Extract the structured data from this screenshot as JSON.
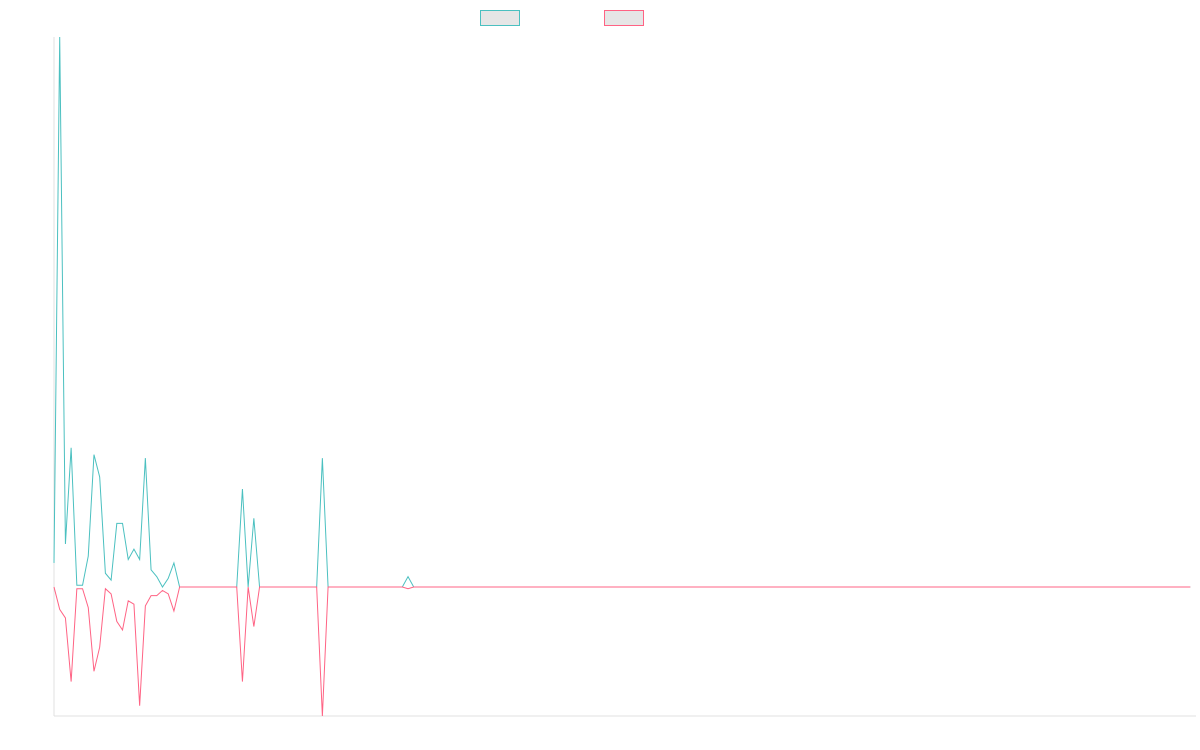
{
  "colors": {
    "series_a": "#4bc0c0",
    "series_b": "#ff6384",
    "swatch_fill": "#e6e6e6",
    "axis": "#e0e0e0"
  },
  "chart_data": {
    "type": "line",
    "title": "",
    "xlabel": "",
    "ylabel": "",
    "grid": false,
    "legend": "top-center",
    "ylim": [
      -75,
      320
    ],
    "x_count": 200,
    "series": [
      {
        "name": "",
        "color": "#4bc0c0",
        "values": [
          14,
          320,
          25,
          81,
          1,
          1,
          18,
          77,
          64,
          8,
          4,
          37,
          37,
          16,
          22,
          16,
          75,
          10,
          6,
          0,
          5,
          14,
          0,
          0,
          0,
          0,
          0,
          0,
          0,
          0,
          0,
          0,
          0,
          57,
          0,
          40,
          0,
          0,
          0,
          0,
          0,
          0,
          0,
          0,
          0,
          0,
          0,
          75,
          0,
          0,
          0,
          0,
          0,
          0,
          0,
          0,
          0,
          0,
          0,
          0,
          0,
          0,
          6,
          0,
          0,
          0,
          0,
          0,
          0,
          0,
          0,
          0,
          0,
          0,
          0,
          0,
          0,
          0,
          0,
          0,
          0,
          0,
          0,
          0,
          0,
          0,
          0,
          0,
          0,
          0,
          0,
          0,
          0,
          0,
          0,
          0,
          0,
          0,
          0,
          0,
          0,
          0,
          0,
          0,
          0,
          0,
          0,
          0,
          0,
          0,
          0,
          0,
          0,
          0,
          0,
          0,
          0,
          0,
          0,
          0,
          0,
          0,
          0,
          0,
          0,
          0,
          0,
          0,
          0,
          0,
          0,
          0,
          0,
          0,
          0,
          0,
          0,
          0,
          0,
          0,
          0,
          0,
          0,
          0,
          0,
          0,
          0,
          0,
          0,
          0,
          0,
          0,
          0,
          0,
          0,
          0,
          0,
          0,
          0,
          0,
          0,
          0,
          0,
          0,
          0,
          0,
          0,
          0,
          0,
          0,
          0,
          0,
          0,
          0,
          0,
          0,
          0,
          0,
          0,
          0,
          0,
          0,
          0,
          0,
          0,
          0,
          0,
          0,
          0,
          0,
          0,
          0,
          0,
          0,
          0,
          0,
          0,
          0,
          0,
          0
        ]
      },
      {
        "name": "",
        "color": "#ff6384",
        "values": [
          0,
          -13,
          -18,
          -55,
          -1,
          -1,
          -12,
          -49,
          -35,
          -1,
          -4,
          -20,
          -25,
          -8,
          -10,
          -69,
          -11,
          -5,
          -5,
          -2,
          -4,
          -14,
          0,
          0,
          0,
          0,
          0,
          0,
          0,
          0,
          0,
          0,
          0,
          -55,
          0,
          -23,
          0,
          0,
          0,
          0,
          0,
          0,
          0,
          0,
          0,
          0,
          0,
          -75,
          0,
          0,
          0,
          0,
          0,
          0,
          0,
          0,
          0,
          0,
          0,
          0,
          0,
          0,
          -1,
          0,
          0,
          0,
          0,
          0,
          0,
          0,
          0,
          0,
          0,
          0,
          0,
          0,
          0,
          0,
          0,
          0,
          0,
          0,
          0,
          0,
          0,
          0,
          0,
          0,
          0,
          0,
          0,
          0,
          0,
          0,
          0,
          0,
          0,
          0,
          0,
          0,
          0,
          0,
          0,
          0,
          0,
          0,
          0,
          0,
          0,
          0,
          0,
          0,
          0,
          0,
          0,
          0,
          0,
          0,
          0,
          0,
          0,
          0,
          0,
          0,
          0,
          0,
          0,
          0,
          0,
          0,
          0,
          0,
          0,
          0,
          0,
          0,
          0,
          0,
          0,
          0,
          0,
          0,
          0,
          0,
          0,
          0,
          0,
          0,
          0,
          0,
          0,
          0,
          0,
          0,
          0,
          0,
          0,
          0,
          0,
          0,
          0,
          0,
          0,
          0,
          0,
          0,
          0,
          0,
          0,
          0,
          0,
          0,
          0,
          0,
          0,
          0,
          0,
          0,
          0,
          0,
          0,
          0,
          0,
          0,
          0,
          0,
          0,
          0,
          0,
          0,
          0,
          0,
          0,
          0,
          0,
          0,
          0,
          0,
          0,
          0
        ]
      }
    ]
  }
}
